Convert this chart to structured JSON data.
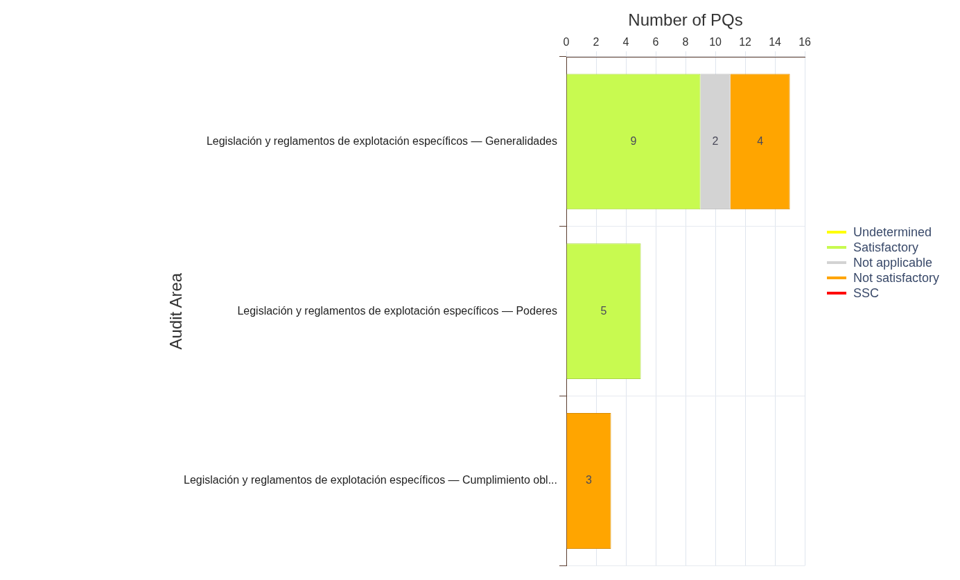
{
  "chart_data": {
    "type": "bar",
    "orientation": "horizontal",
    "stacked": true,
    "xlabel": "Number of PQs",
    "ylabel": "Audit Area",
    "categories": [
      "Legislación y reglamentos de explotación específicos — Generalidades",
      "Legislación y reglamentos de explotación específicos — Poderes",
      "Legislación y reglamentos de explotación específicos — Cumplimiento obl..."
    ],
    "series": [
      {
        "name": "Undetermined",
        "color": "#ffff00",
        "values": [
          null,
          null,
          null
        ]
      },
      {
        "name": "Satisfactory",
        "color": "#c8fa50",
        "values": [
          9,
          5,
          null
        ]
      },
      {
        "name": "Not applicable",
        "color": "#d3d3d3",
        "values": [
          2,
          null,
          null
        ]
      },
      {
        "name": "Not satisfactory",
        "color": "#ffa500",
        "values": [
          4,
          null,
          3
        ]
      },
      {
        "name": "SSC",
        "color": "#ff0000",
        "values": [
          null,
          null,
          null
        ]
      }
    ],
    "xlim": [
      0,
      16
    ],
    "xticks": [
      0,
      2,
      4,
      6,
      8,
      10,
      12,
      14,
      16
    ],
    "grid": true,
    "legend": "right",
    "data_labels": true
  }
}
